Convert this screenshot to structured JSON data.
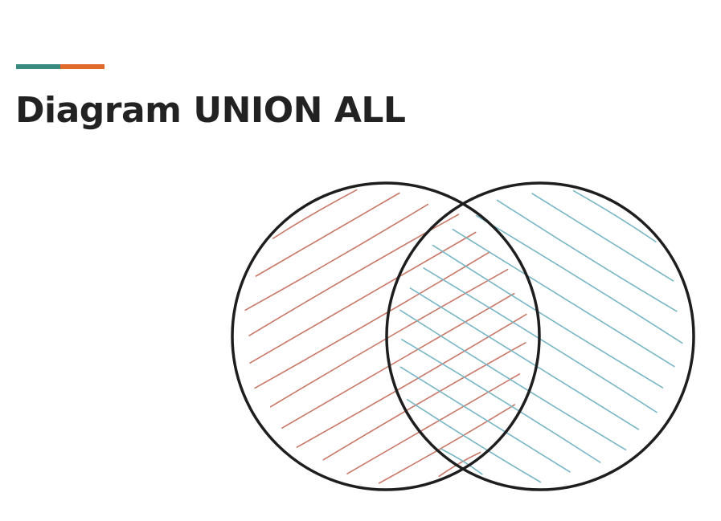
{
  "slide": {
    "title": "Diagram UNION ALL"
  },
  "accent": {
    "left_color": "#3a8a80",
    "right_color": "#e06a2c"
  },
  "diagram": {
    "type": "venn",
    "sets": [
      {
        "hatch_color": "#c87868",
        "hatch_direction": "rising"
      },
      {
        "hatch_color": "#78b6c6",
        "hatch_direction": "falling"
      }
    ],
    "outline_color": "#1e1e1e"
  }
}
